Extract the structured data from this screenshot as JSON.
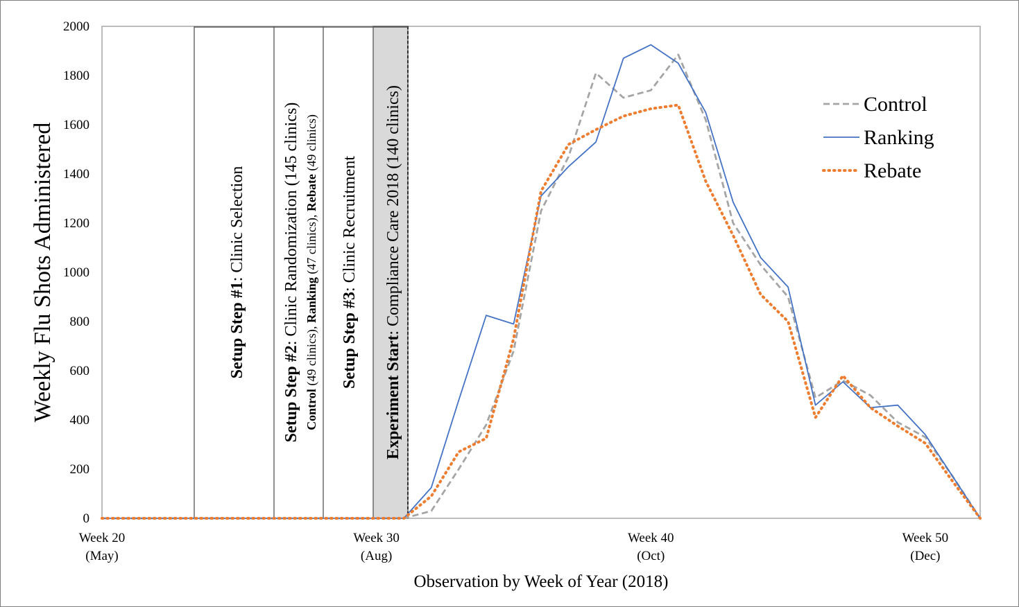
{
  "chart_data": {
    "type": "line",
    "xlabel": "Observation by Week of Year (2018)",
    "ylabel": "Weekly Flu Shots Administered",
    "ylim": [
      0,
      2000
    ],
    "yticks": [
      0,
      200,
      400,
      600,
      800,
      1000,
      1200,
      1400,
      1600,
      1800,
      2000
    ],
    "xlim": [
      20,
      52
    ],
    "xticks": [
      {
        "week": 20,
        "line1": "Week 20",
        "line2": "(May)"
      },
      {
        "week": 30,
        "line1": "Week 30",
        "line2": "(Aug)"
      },
      {
        "week": 40,
        "line1": "Week 40",
        "line2": "(Oct)"
      },
      {
        "week": 50,
        "line1": "Week 50",
        "line2": "(Dec)"
      }
    ],
    "grid": false,
    "legend_position": "top-right",
    "series": [
      {
        "name": "Control",
        "color": "#a5a5a5",
        "style": "dashed",
        "x": [
          20,
          30,
          31,
          32,
          33,
          34,
          35,
          36,
          37,
          38,
          39,
          40,
          41,
          42,
          43,
          44,
          45,
          46,
          47,
          48,
          49,
          50,
          51,
          52
        ],
        "values": [
          0,
          0,
          0,
          30,
          200,
          380,
          680,
          1250,
          1470,
          1810,
          1710,
          1740,
          1885,
          1620,
          1200,
          1030,
          900,
          490,
          560,
          500,
          390,
          330,
          170,
          0
        ]
      },
      {
        "name": "Ranking",
        "color": "#4472c4",
        "style": "solid",
        "x": [
          20,
          30,
          31,
          32,
          33,
          34,
          35,
          36,
          37,
          38,
          39,
          40,
          41,
          42,
          43,
          44,
          45,
          46,
          47,
          48,
          49,
          50,
          51,
          52
        ],
        "values": [
          0,
          0,
          0,
          125,
          480,
          825,
          790,
          1310,
          1430,
          1530,
          1870,
          1925,
          1850,
          1650,
          1285,
          1060,
          940,
          460,
          555,
          450,
          460,
          340,
          170,
          0
        ]
      },
      {
        "name": "Rebate",
        "color": "#ed7d31",
        "style": "dotted",
        "x": [
          20,
          30,
          31,
          32,
          33,
          34,
          35,
          36,
          37,
          38,
          39,
          40,
          41,
          42,
          43,
          44,
          45,
          46,
          47,
          48,
          49,
          50,
          51,
          52
        ],
        "values": [
          0,
          0,
          0,
          90,
          270,
          325,
          730,
          1330,
          1520,
          1580,
          1635,
          1665,
          1680,
          1370,
          1150,
          910,
          800,
          410,
          580,
          450,
          375,
          305,
          150,
          0
        ]
      }
    ],
    "phases": [
      {
        "title": "Setup Step #1",
        "rest": ": Clinic Selection",
        "sub": null
      },
      {
        "title": "Setup Step #2",
        "rest": ": Clinic Randomization (145 clinics)",
        "sub": {
          "a_bold": "Control",
          "a_rest": " (49 clinics), ",
          "b_bold": "Ranking",
          "b_rest": " (47 clinics), ",
          "c_bold": "Rebate",
          "c_rest": " (49 clinics)"
        }
      },
      {
        "title": "Setup Step #3",
        "rest": ": Clinic Recruitment",
        "sub": null
      },
      {
        "title": "Experiment Start",
        "rest": ": Compliance Care 2018 (140 clinics)",
        "sub": null
      }
    ]
  }
}
